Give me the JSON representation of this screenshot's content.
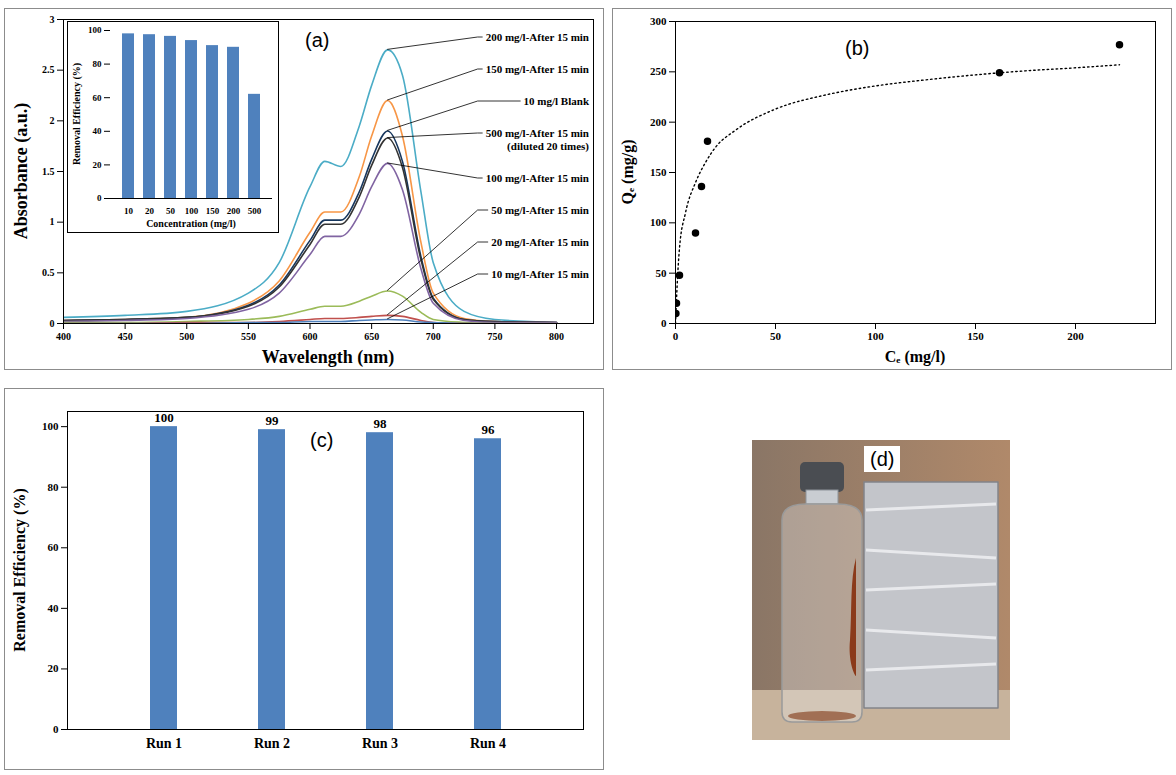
{
  "chart_data": [
    {
      "type": "line",
      "title": "(a)",
      "x_label": "Wavelength (nm)",
      "y_label": "Absorbance (a.u.)",
      "x": [
        400,
        450,
        500,
        550,
        575,
        600,
        612,
        625,
        640,
        650,
        663,
        675,
        690,
        700,
        725,
        750,
        800
      ],
      "series": [
        {
          "name": "200 mg/l-After 15 min",
          "color": "#4bacc6",
          "values": [
            0.06,
            0.08,
            0.12,
            0.3,
            0.6,
            1.35,
            1.6,
            1.55,
            1.95,
            2.35,
            2.7,
            2.45,
            1.3,
            0.6,
            0.12,
            0.04,
            0.01
          ]
        },
        {
          "name": "150 mg/l-After 15 min",
          "color": "#f79646",
          "values": [
            0.03,
            0.04,
            0.06,
            0.2,
            0.42,
            0.9,
            1.1,
            1.1,
            1.45,
            1.85,
            2.2,
            1.85,
            0.8,
            0.3,
            0.05,
            0.02,
            0.01
          ]
        },
        {
          "name": "10 mg/l Blank",
          "color": "#17375e",
          "values": [
            0.03,
            0.04,
            0.06,
            0.18,
            0.38,
            0.82,
            1.02,
            1.02,
            1.3,
            1.62,
            1.9,
            1.6,
            0.66,
            0.25,
            0.04,
            0.02,
            0.01
          ]
        },
        {
          "name": "500 mg/l-After 15 min (diluted 20 times)",
          "color": "#333333",
          "values": [
            0.03,
            0.04,
            0.06,
            0.17,
            0.36,
            0.78,
            0.98,
            0.98,
            1.25,
            1.56,
            1.83,
            1.54,
            0.63,
            0.24,
            0.04,
            0.02,
            0.01
          ]
        },
        {
          "name": "100 mg/l-After 15 min",
          "color": "#8064a2",
          "values": [
            0.02,
            0.03,
            0.05,
            0.14,
            0.3,
            0.68,
            0.86,
            0.86,
            1.08,
            1.35,
            1.58,
            1.32,
            0.54,
            0.2,
            0.03,
            0.01,
            0.01
          ]
        },
        {
          "name": "50 mg/l-After 15 min",
          "color": "#9bbb59",
          "values": [
            0.01,
            0.01,
            0.02,
            0.04,
            0.07,
            0.14,
            0.17,
            0.17,
            0.22,
            0.27,
            0.32,
            0.27,
            0.11,
            0.04,
            0.01,
            0,
            0
          ]
        },
        {
          "name": "20 mg/l-After 15 min",
          "color": "#c0504d",
          "values": [
            0,
            0,
            0.01,
            0.01,
            0.02,
            0.04,
            0.05,
            0.05,
            0.06,
            0.07,
            0.08,
            0.07,
            0.03,
            0.01,
            0,
            0,
            0
          ]
        },
        {
          "name": "10 mg/l-After 15 min",
          "color": "#4f81bd",
          "values": [
            0,
            0,
            0,
            0.01,
            0.01,
            0.02,
            0.02,
            0.02,
            0.03,
            0.035,
            0.04,
            0.035,
            0.015,
            0.01,
            0,
            0,
            0
          ]
        }
      ],
      "xlim": [
        400,
        830
      ],
      "xticks": [
        400,
        450,
        500,
        550,
        600,
        650,
        700,
        750,
        800
      ],
      "ylim": [
        0,
        3
      ],
      "yticks": [
        0,
        0.5,
        1,
        1.5,
        2,
        2.5,
        3
      ],
      "grid": false,
      "inset": {
        "type": "bar",
        "x_label": "Concentration (mg/l)",
        "y_label": "Removal Efficiency (%)",
        "categories": [
          "10",
          "20",
          "50",
          "100",
          "150",
          "200",
          "500"
        ],
        "values": [
          98,
          97.5,
          96.5,
          94,
          91,
          90,
          62
        ],
        "color": "#4f81bd",
        "ylim": [
          0,
          100
        ],
        "yticks": [
          0,
          20,
          40,
          60,
          80,
          100
        ],
        "grid": false
      }
    },
    {
      "type": "scatter",
      "title": "(b)",
      "x_label": "Cₑ (mg/l)",
      "y_label": "Qₑ (mg/g)",
      "series": [
        {
          "type": "scatter",
          "marker": "circle",
          "color": "#000000",
          "x": [
            0.2,
            0.5,
            2,
            10,
            13,
            16,
            162,
            222
          ],
          "values": [
            10,
            20,
            48,
            90,
            136,
            181,
            249,
            277
          ]
        },
        {
          "type": "line",
          "line_style": "dotted",
          "color": "#000000",
          "x": [
            0,
            1,
            2,
            5,
            10,
            15,
            20,
            30,
            50,
            75,
            100,
            125,
            150,
            175,
            200,
            222
          ],
          "values": [
            0,
            45,
            75,
            110,
            140,
            160,
            175,
            192,
            213,
            227,
            236,
            242,
            247,
            251,
            254,
            257
          ]
        }
      ],
      "xlim": [
        0,
        240
      ],
      "xticks": [
        0,
        50,
        100,
        150,
        200
      ],
      "ylim": [
        0,
        300
      ],
      "yticks": [
        0,
        50,
        100,
        150,
        200,
        250,
        300
      ],
      "grid": false
    },
    {
      "type": "bar",
      "title": "(c)",
      "y_label": "Removal Efficiency (%)",
      "categories": [
        "Run 1",
        "Run 2",
        "Run 3",
        "Run 4"
      ],
      "values": [
        100,
        99,
        98,
        96
      ],
      "color": "#4f81bd",
      "data_labels": true,
      "ylim": [
        0,
        105
      ],
      "yticks": [
        0,
        20,
        40,
        60,
        80,
        100
      ],
      "grid": false
    },
    {
      "type": "image",
      "title": "(d)"
    }
  ]
}
